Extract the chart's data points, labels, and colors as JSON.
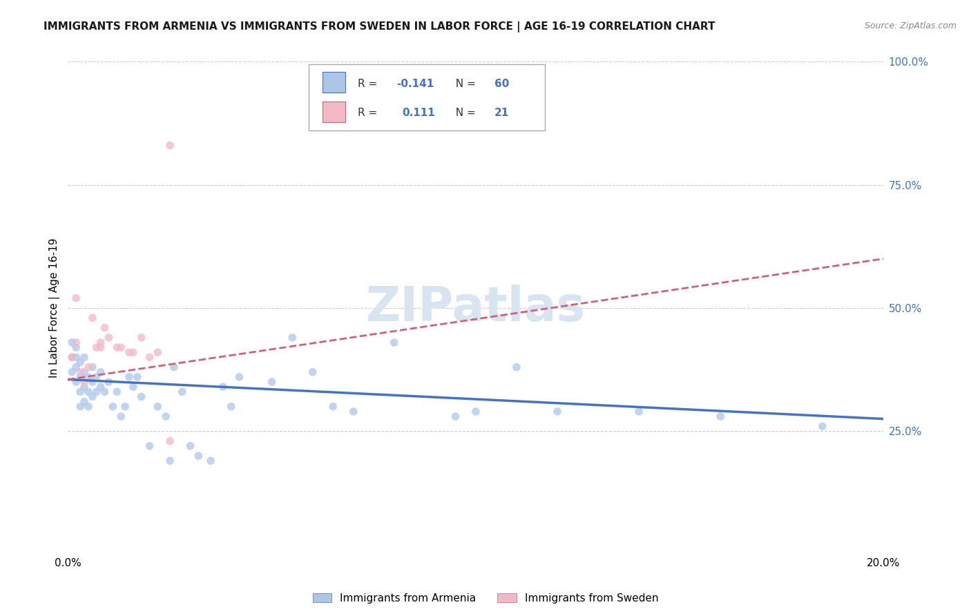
{
  "title": "IMMIGRANTS FROM ARMENIA VS IMMIGRANTS FROM SWEDEN IN LABOR FORCE | AGE 16-19 CORRELATION CHART",
  "source": "Source: ZipAtlas.com",
  "ylabel": "In Labor Force | Age 16-19",
  "xlim": [
    0.0,
    0.2
  ],
  "ylim": [
    0.0,
    1.0
  ],
  "legend1_r": "-0.141",
  "legend1_n": "60",
  "legend2_r": "0.111",
  "legend2_n": "21",
  "legend1_label": "Immigrants from Armenia",
  "legend2_label": "Immigrants from Sweden",
  "color_armenia": "#adc6e8",
  "color_sweden": "#f2b8c6",
  "trendline1_color": "#4472c4",
  "trendline2_color": "#d45f7a",
  "watermark": "ZIPatlas",
  "watermark_color": "#d8e4f0",
  "grid_color": "#cccccc",
  "scatter_size": 70,
  "scatter_alpha": 0.75,
  "armenia_x": [
    0.001,
    0.001,
    0.001,
    0.002,
    0.002,
    0.002,
    0.002,
    0.003,
    0.003,
    0.003,
    0.003,
    0.004,
    0.004,
    0.004,
    0.004,
    0.005,
    0.005,
    0.005,
    0.006,
    0.006,
    0.006,
    0.007,
    0.007,
    0.008,
    0.008,
    0.009,
    0.01,
    0.011,
    0.012,
    0.013,
    0.014,
    0.015,
    0.016,
    0.017,
    0.018,
    0.02,
    0.022,
    0.024,
    0.025,
    0.026,
    0.028,
    0.03,
    0.032,
    0.035,
    0.038,
    0.04,
    0.042,
    0.05,
    0.055,
    0.06,
    0.065,
    0.07,
    0.08,
    0.095,
    0.1,
    0.11,
    0.12,
    0.14,
    0.16,
    0.185
  ],
  "armenia_y": [
    0.37,
    0.4,
    0.43,
    0.35,
    0.38,
    0.4,
    0.42,
    0.3,
    0.33,
    0.36,
    0.39,
    0.31,
    0.34,
    0.37,
    0.4,
    0.3,
    0.33,
    0.36,
    0.32,
    0.35,
    0.38,
    0.33,
    0.36,
    0.34,
    0.37,
    0.33,
    0.35,
    0.3,
    0.33,
    0.28,
    0.3,
    0.36,
    0.34,
    0.36,
    0.32,
    0.22,
    0.3,
    0.28,
    0.19,
    0.38,
    0.33,
    0.22,
    0.2,
    0.19,
    0.34,
    0.3,
    0.36,
    0.35,
    0.44,
    0.37,
    0.3,
    0.29,
    0.43,
    0.28,
    0.29,
    0.38,
    0.29,
    0.29,
    0.28,
    0.26
  ],
  "sweden_x": [
    0.001,
    0.002,
    0.002,
    0.003,
    0.004,
    0.005,
    0.006,
    0.007,
    0.008,
    0.008,
    0.009,
    0.01,
    0.012,
    0.013,
    0.015,
    0.016,
    0.018,
    0.02,
    0.022,
    0.025,
    0.025
  ],
  "sweden_y": [
    0.4,
    0.43,
    0.52,
    0.37,
    0.35,
    0.38,
    0.48,
    0.42,
    0.42,
    0.43,
    0.46,
    0.44,
    0.42,
    0.42,
    0.41,
    0.41,
    0.44,
    0.4,
    0.41,
    0.23,
    0.83
  ],
  "trendline1_x": [
    0.0,
    0.2
  ],
  "trendline1_y": [
    0.355,
    0.275
  ],
  "trendline2_x": [
    0.0,
    0.2
  ],
  "trendline2_y": [
    0.355,
    0.6
  ]
}
